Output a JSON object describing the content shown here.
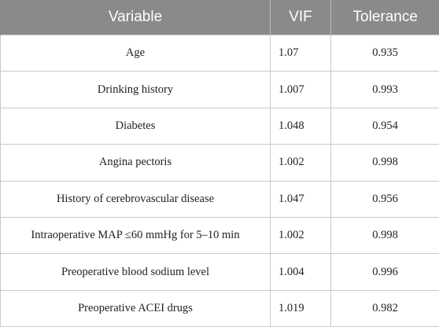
{
  "table": {
    "headers": [
      "Variable",
      "VIF",
      "Tolerance"
    ],
    "rows": [
      {
        "variable": "Age",
        "vif": "1.07",
        "tolerance": "0.935"
      },
      {
        "variable": "Drinking history",
        "vif": "1.007",
        "tolerance": "0.993"
      },
      {
        "variable": "Diabetes",
        "vif": "1.048",
        "tolerance": "0.954"
      },
      {
        "variable": "Angina pectoris",
        "vif": "1.002",
        "tolerance": "0.998"
      },
      {
        "variable": "History of cerebrovascular disease",
        "vif": "1.047",
        "tolerance": "0.956"
      },
      {
        "variable": "Intraoperative MAP ≤60 mmHg for 5–10 min",
        "vif": "1.002",
        "tolerance": "0.998"
      },
      {
        "variable": "Preoperative blood sodium level",
        "vif": "1.004",
        "tolerance": "0.996"
      },
      {
        "variable": "Preoperative ACEI drugs",
        "vif": "1.019",
        "tolerance": "0.982"
      }
    ]
  }
}
